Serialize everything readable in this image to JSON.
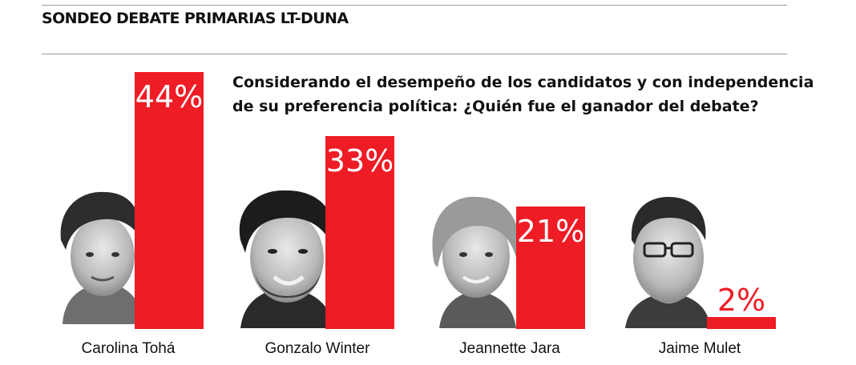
{
  "header": {
    "title": "SONDEO DEBATE PRIMARIAS LT-DUNA"
  },
  "colors": {
    "bar": "#ee1c25",
    "text": "#111111",
    "rule": "#9a9a9a"
  },
  "chart_data": {
    "type": "bar",
    "title": "Considerando el desempeño de los candidatos y con independencia de su preferencia política: ¿Quién fue el ganador del debate?",
    "title_lines": [
      "Considerando el desempeño de los candidatos y con independencia",
      "de su preferencia política: ¿Quién fue el ganador del debate?"
    ],
    "categories": [
      "Carolina Tohá",
      "Gonzalo Winter",
      "Jeannette Jara",
      "Jaime Mulet"
    ],
    "values": [
      44,
      33,
      21,
      2
    ],
    "value_labels": [
      "44%",
      "33%",
      "21%",
      "2%"
    ],
    "unit": "%",
    "xlabel": "",
    "ylabel": "",
    "ylim": [
      0,
      44
    ],
    "grid": false,
    "legend": "none"
  }
}
